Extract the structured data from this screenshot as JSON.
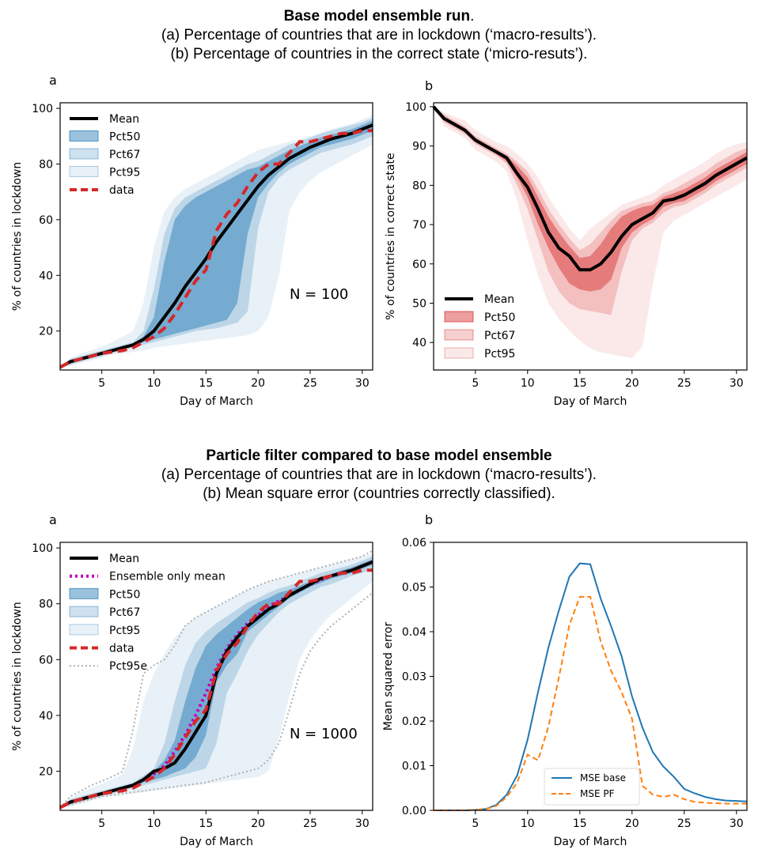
{
  "captions": {
    "top": {
      "title": "Base model ensemble run",
      "title_end": ".",
      "line_a": "(a) Percentage of countries that are in lockdown (‘macro-results’).",
      "line_b": "(b) Percentage of countries in the correct state (‘micro-resuts’)."
    },
    "bottom": {
      "title": "Particle filter compared to base model ensemble",
      "line_a": "(a) Percentage of countries that are in lockdown (‘macro-results’).",
      "line_b": "(b) Mean square error (countries correctly classified)."
    }
  },
  "colors": {
    "blue_bands": [
      "#1f77b4",
      "#1f77b4",
      "#1f77b4"
    ],
    "red_bands": [
      "#d62728",
      "#d62728",
      "#d62728"
    ],
    "mean": "#000000",
    "data": "#d62728",
    "ensemble_mean": "#c000c0",
    "pct95e": "#b0b0b0",
    "mse_base": "#1f77b4",
    "mse_pf": "#ff7f0e"
  },
  "chart_data": [
    {
      "panel_label": "a",
      "type": "line",
      "xlabel": "Day of March",
      "ylabel": "% of countries in lockdown",
      "xlim": [
        1,
        31
      ],
      "ylim": [
        6,
        102
      ],
      "xticks": [
        5,
        10,
        15,
        20,
        25,
        30
      ],
      "yticks": [
        20,
        40,
        60,
        80,
        100
      ],
      "annotation": "N = 100",
      "legend_position": "top-left",
      "x": [
        1,
        2,
        3,
        4,
        5,
        6,
        7,
        8,
        9,
        10,
        11,
        12,
        13,
        14,
        15,
        16,
        17,
        18,
        19,
        20,
        21,
        22,
        23,
        24,
        25,
        26,
        27,
        28,
        29,
        30,
        31
      ],
      "mean": [
        7,
        9,
        10,
        11,
        12,
        13,
        14,
        15,
        17,
        20,
        25,
        30,
        36,
        41,
        46,
        52,
        57,
        62,
        67,
        72,
        76,
        79,
        82,
        84,
        86,
        87.5,
        89,
        90,
        91,
        92.5,
        94
      ],
      "data": [
        7,
        9,
        10,
        11,
        12,
        12.5,
        13,
        14,
        16,
        18,
        21,
        26,
        32,
        38,
        42,
        56,
        62,
        66,
        72,
        77,
        80,
        80,
        84,
        88,
        88,
        89,
        90,
        91,
        91,
        92,
        92
      ],
      "bands": [
        {
          "name": "Pct50",
          "lower": [
            7,
            8.5,
            9.5,
            10.5,
            11.5,
            12.5,
            13.5,
            14.5,
            16,
            17,
            18,
            19,
            20,
            21,
            22,
            23,
            24,
            30,
            55,
            68,
            73,
            77,
            80,
            82,
            84,
            86,
            87,
            88,
            89,
            90.5,
            92
          ],
          "upper": [
            7,
            9.5,
            10.5,
            11.5,
            12.5,
            13.5,
            14.5,
            15.5,
            18,
            25,
            45,
            60,
            65,
            68,
            70,
            72,
            74,
            76,
            78,
            79,
            81,
            83,
            85,
            86.5,
            88,
            89.5,
            90.5,
            91.5,
            92.5,
            94,
            95.5
          ]
        },
        {
          "name": "Pct67",
          "lower": [
            7,
            8,
            9,
            10,
            11,
            12,
            13,
            14,
            15,
            16,
            17,
            18,
            19,
            20,
            20.5,
            21,
            22,
            23,
            27,
            57,
            70,
            75,
            78,
            80,
            82,
            84,
            85,
            86,
            87,
            88.5,
            90
          ],
          "upper": [
            7,
            10,
            11,
            12,
            13,
            14,
            15,
            16,
            20,
            35,
            55,
            64,
            68,
            70,
            72,
            74,
            76,
            78,
            80,
            81,
            83,
            85,
            87,
            88,
            89.5,
            91,
            92,
            93,
            94,
            95,
            96.5
          ]
        },
        {
          "name": "Pct95",
          "lower": [
            7,
            7.5,
            8.5,
            9.5,
            10.5,
            11.5,
            12,
            12.5,
            13,
            14,
            14.5,
            15,
            15.5,
            16,
            16.5,
            17,
            17.5,
            18,
            18.5,
            20,
            25,
            40,
            63,
            70,
            74,
            77,
            79,
            81,
            83,
            85,
            87
          ],
          "upper": [
            7,
            10.5,
            12,
            13,
            14.5,
            16,
            18,
            20,
            30,
            50,
            63,
            68,
            71,
            73,
            75,
            77,
            79,
            81,
            83,
            85,
            86,
            87,
            88,
            89,
            90,
            91,
            92.5,
            93.5,
            94.5,
            96,
            97.5
          ]
        }
      ],
      "series": [
        {
          "name": "Mean"
        },
        {
          "name": "data"
        }
      ]
    },
    {
      "panel_label": "b",
      "type": "line",
      "xlabel": "Day of March",
      "ylabel": "% of countries in correct state",
      "xlim": [
        1,
        31
      ],
      "ylim": [
        33,
        101
      ],
      "xticks": [
        5,
        10,
        15,
        20,
        25,
        30
      ],
      "yticks": [
        40,
        50,
        60,
        70,
        80,
        90,
        100
      ],
      "legend_position": "bottom-left",
      "x": [
        1,
        2,
        3,
        4,
        5,
        6,
        7,
        8,
        9,
        10,
        11,
        12,
        13,
        14,
        15,
        16,
        17,
        18,
        19,
        20,
        21,
        22,
        23,
        24,
        25,
        26,
        27,
        28,
        29,
        30,
        31
      ],
      "mean": [
        100,
        97,
        95.5,
        94,
        91.5,
        90,
        88.5,
        87,
        83,
        79.5,
        74,
        68,
        64,
        62,
        58.5,
        58.5,
        60,
        63,
        67,
        70,
        71.5,
        73,
        76,
        76.5,
        77.5,
        79,
        80.5,
        82.5,
        84,
        85.5,
        87
      ],
      "bands": [
        {
          "name": "Pct50",
          "lower": [
            100,
            96.5,
            95,
            93.5,
            91,
            89.5,
            88,
            86,
            82,
            77,
            70,
            64,
            59,
            55,
            53.5,
            53,
            53.5,
            56,
            64,
            68,
            70,
            71.5,
            74.5,
            75.5,
            76,
            77.5,
            79,
            81,
            82.5,
            84,
            85.5
          ],
          "upper": [
            100,
            97.5,
            96,
            94.5,
            92,
            90.5,
            89,
            87.5,
            85,
            82,
            77,
            72,
            68,
            64.5,
            61.5,
            62,
            65,
            69,
            72,
            73.5,
            74.5,
            75,
            77,
            78,
            79,
            80.5,
            82,
            84,
            85.5,
            87,
            88.5
          ]
        },
        {
          "name": "Pct67",
          "lower": [
            100,
            96,
            94.5,
            93,
            90.5,
            89,
            87.5,
            85.5,
            80,
            74,
            66,
            58,
            53,
            50,
            48.5,
            48,
            47.5,
            47,
            58,
            66,
            69,
            70.5,
            73,
            74.5,
            75,
            76.5,
            78,
            80,
            81.5,
            83,
            84.5
          ],
          "upper": [
            100,
            98,
            96.5,
            95,
            92.5,
            91,
            89.5,
            88,
            86,
            83.5,
            79,
            74,
            70,
            66.5,
            63.5,
            65,
            68,
            71,
            73.5,
            74.5,
            75.5,
            76,
            78,
            79,
            80.5,
            82,
            83.5,
            85.5,
            87,
            88.5,
            89.5
          ]
        },
        {
          "name": "Pct95",
          "lower": [
            100,
            95,
            93.5,
            92,
            89,
            87.5,
            86,
            83.5,
            76,
            66,
            57,
            50,
            46,
            43,
            40.5,
            38.5,
            37.5,
            37,
            36.5,
            36,
            39,
            55,
            68,
            71,
            72.5,
            74,
            75.5,
            77,
            78.5,
            80,
            81.5
          ],
          "upper": [
            100,
            98.5,
            97.5,
            96.5,
            94,
            92.5,
            91,
            90,
            88,
            85.5,
            82,
            77,
            73,
            69,
            66,
            69,
            71,
            73,
            75,
            76,
            77,
            78,
            80,
            81.5,
            83,
            84.5,
            86,
            88,
            89.5,
            90.5,
            91
          ]
        }
      ],
      "series": [
        {
          "name": "Mean"
        }
      ]
    },
    {
      "panel_label": "a",
      "type": "line",
      "xlabel": "Day of March",
      "ylabel": "% of countries in lockdown",
      "xlim": [
        1,
        31
      ],
      "ylim": [
        6,
        102
      ],
      "xticks": [
        5,
        10,
        15,
        20,
        25,
        30
      ],
      "yticks": [
        20,
        40,
        60,
        80,
        100
      ],
      "annotation": "N = 1000",
      "legend_position": "top-left",
      "x": [
        1,
        2,
        3,
        4,
        5,
        6,
        7,
        8,
        9,
        10,
        11,
        12,
        13,
        14,
        15,
        16,
        17,
        18,
        19,
        20,
        21,
        22,
        23,
        24,
        25,
        26,
        27,
        28,
        29,
        30,
        31
      ],
      "mean": [
        7,
        9,
        10,
        11,
        12,
        13,
        14,
        15,
        17,
        20,
        21,
        23,
        28,
        34,
        40,
        55,
        63,
        68,
        72,
        75,
        78,
        80,
        83,
        85,
        87,
        89,
        90,
        91,
        92,
        93.5,
        95
      ],
      "ensemble_mean": [
        7,
        9,
        10,
        11,
        12,
        13,
        14,
        15,
        17,
        19,
        22,
        27,
        33,
        40,
        48,
        57,
        64,
        69,
        73,
        76,
        79,
        81,
        83,
        85,
        87,
        88.5,
        90,
        91,
        92,
        93.5,
        95
      ],
      "data": [
        7,
        9,
        10,
        11,
        12,
        12.5,
        13,
        14,
        16,
        18,
        21,
        26,
        32,
        38,
        42,
        56,
        62,
        66,
        72,
        77,
        80,
        80,
        84,
        88,
        88,
        89,
        90,
        91,
        91,
        92,
        92
      ],
      "pct95e_lower": [
        7,
        8,
        9,
        10,
        11,
        11.5,
        12,
        12.5,
        13,
        13.5,
        14,
        14.5,
        15,
        15.5,
        16,
        17,
        18,
        19,
        20,
        21,
        24,
        30,
        42,
        55,
        63,
        68,
        72,
        75,
        78,
        81,
        84
      ],
      "pct95e_upper": [
        7,
        11,
        13,
        15,
        16.5,
        18,
        20,
        35,
        55,
        58,
        60,
        65,
        72,
        75,
        77,
        79,
        81,
        83,
        85,
        86.5,
        88,
        89,
        90,
        91,
        92,
        93,
        94,
        95,
        96,
        97,
        99
      ],
      "bands": [
        {
          "name": "Pct50",
          "lower": [
            7,
            8.5,
            9.5,
            10.5,
            11.5,
            12.5,
            13.5,
            14.5,
            16,
            17,
            18,
            19.5,
            21,
            25,
            33,
            52,
            58,
            62,
            70,
            73,
            76,
            79,
            82,
            84,
            86,
            87.5,
            89,
            90,
            91,
            92.5,
            94
          ],
          "upper": [
            7,
            9.5,
            10.5,
            11.5,
            12.5,
            13.5,
            14.5,
            15.5,
            17.5,
            20,
            24,
            31,
            45,
            57,
            65,
            69,
            72,
            75,
            78,
            80.5,
            82,
            84,
            85,
            86.5,
            88,
            89.5,
            90.5,
            92,
            93,
            94.5,
            96
          ]
        },
        {
          "name": "Pct67",
          "lower": [
            7,
            8,
            9,
            10,
            11,
            12,
            13,
            14,
            15,
            16,
            17,
            18,
            19,
            20,
            21,
            30,
            48,
            55,
            63,
            69,
            73,
            77,
            80,
            82,
            84,
            86,
            87,
            88.5,
            90,
            91,
            92.5
          ],
          "upper": [
            7,
            10,
            11,
            12,
            13,
            14,
            15,
            16,
            18.5,
            21,
            30,
            45,
            58,
            66,
            70,
            73,
            75.5,
            78,
            80.5,
            82,
            84,
            85.5,
            86.5,
            88,
            89.5,
            91,
            92,
            93,
            94,
            95.5,
            97
          ]
        },
        {
          "name": "Pct95",
          "lower": [
            7,
            7.5,
            8.5,
            9.5,
            10.5,
            11,
            11.5,
            12,
            12.5,
            13,
            13.5,
            14,
            14.5,
            15,
            15.5,
            16,
            16.5,
            17,
            17.5,
            18,
            20,
            32,
            47,
            60,
            67,
            72,
            76,
            79,
            82,
            85,
            88
          ],
          "upper": [
            7,
            10.5,
            12.5,
            14,
            15.5,
            17,
            19,
            28,
            45,
            55,
            62,
            68,
            72,
            75,
            77,
            79,
            81,
            83,
            85,
            86.5,
            88,
            89,
            90,
            91,
            92,
            93,
            94,
            95,
            96,
            97,
            98
          ]
        }
      ],
      "series": [
        {
          "name": "Mean"
        },
        {
          "name": "Ensemble only mean"
        },
        {
          "name": "data"
        },
        {
          "name": "Pct95e"
        }
      ]
    },
    {
      "panel_label": "b",
      "type": "line",
      "xlabel": "Day of March",
      "ylabel": "Mean squared error",
      "xlim": [
        1,
        31
      ],
      "ylim": [
        0,
        0.06
      ],
      "xticks": [
        5,
        10,
        15,
        20,
        25,
        30
      ],
      "yticks": [
        0.0,
        0.01,
        0.02,
        0.03,
        0.04,
        0.05,
        0.06
      ],
      "ytick_labels": [
        "0.00",
        "0.01",
        "0.02",
        "0.03",
        "0.04",
        "0.05",
        "0.06"
      ],
      "legend_position": "bottom-center",
      "x": [
        1,
        2,
        3,
        4,
        5,
        6,
        7,
        8,
        9,
        10,
        11,
        12,
        13,
        14,
        15,
        16,
        17,
        18,
        19,
        20,
        21,
        22,
        23,
        24,
        25,
        26,
        27,
        28,
        29,
        30,
        31
      ],
      "series": [
        {
          "name": "MSE base",
          "values": [
            0,
            0,
            0,
            0,
            0.0001,
            0.0003,
            0.0012,
            0.0035,
            0.0078,
            0.0158,
            0.0265,
            0.0365,
            0.0448,
            0.0523,
            0.0553,
            0.0551,
            0.0474,
            0.0412,
            0.0345,
            0.0255,
            0.0185,
            0.013,
            0.0098,
            0.0075,
            0.0048,
            0.0038,
            0.003,
            0.0025,
            0.0022,
            0.0021,
            0.002
          ]
        },
        {
          "name": "MSE PF",
          "values": [
            0,
            0,
            0,
            0,
            0.0001,
            0.0003,
            0.001,
            0.003,
            0.0062,
            0.0125,
            0.0112,
            0.0188,
            0.0298,
            0.0415,
            0.0478,
            0.0478,
            0.0378,
            0.0312,
            0.0265,
            0.0205,
            0.0055,
            0.0035,
            0.003,
            0.0035,
            0.0025,
            0.0019,
            0.0017,
            0.0016,
            0.0015,
            0.0015,
            0.0015
          ]
        }
      ]
    }
  ]
}
